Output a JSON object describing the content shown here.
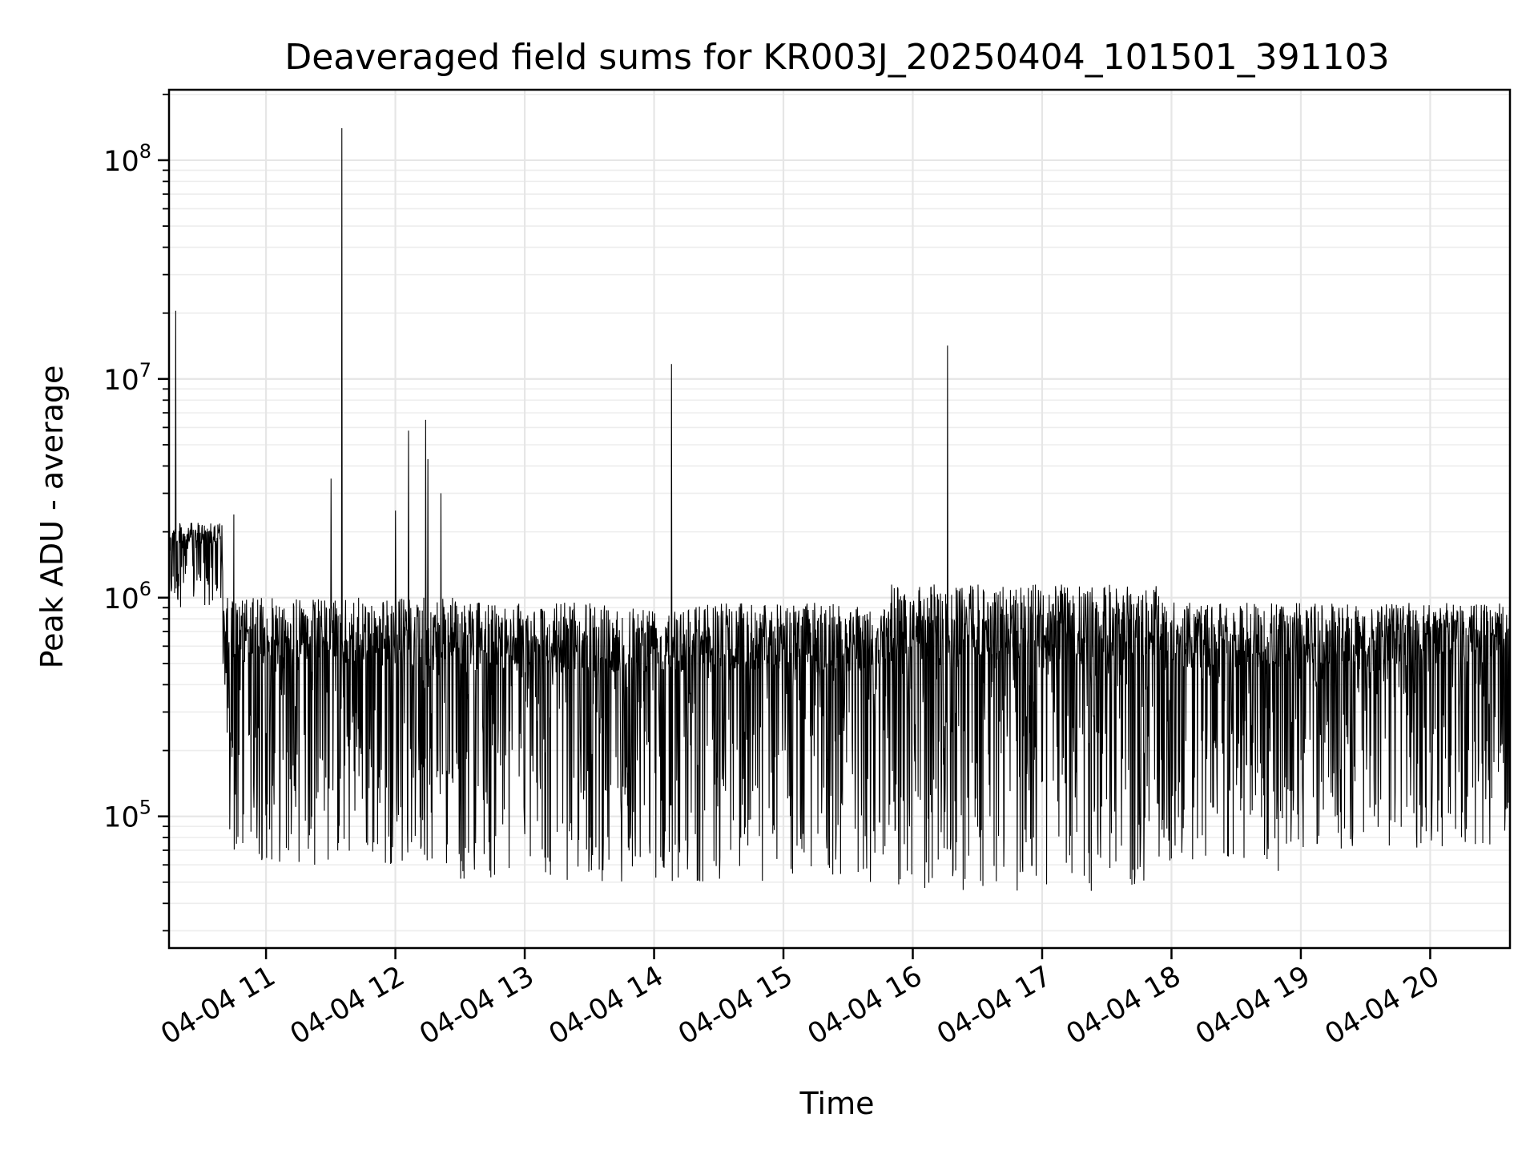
{
  "chart_data": {
    "type": "line",
    "title": "Deaveraged field sums for KR003J_20250404_101501_391103",
    "xlabel": "Time",
    "ylabel": "Peak ADU - average",
    "yscale": "log",
    "ylim": [
      25000,
      210000000
    ],
    "xlim": [
      "2025-04-04 10:15",
      "2025-04-04 20:37"
    ],
    "grid": true,
    "x_ticks": [
      "04-04 11",
      "04-04 12",
      "04-04 13",
      "04-04 14",
      "04-04 15",
      "04-04 16",
      "04-04 17",
      "04-04 18",
      "04-04 19",
      "04-04 20"
    ],
    "y_ticks": [
      {
        "base": "10",
        "exp": "5",
        "value": 100000
      },
      {
        "base": "10",
        "exp": "6",
        "value": 1000000
      },
      {
        "base": "10",
        "exp": "7",
        "value": 10000000
      },
      {
        "base": "10",
        "exp": "8",
        "value": 100000000
      }
    ],
    "series": [
      {
        "color": "#000000",
        "segments": [
          {
            "from": "2025-04-04 10:15",
            "to": "2025-04-04 10:40",
            "low": 900000,
            "high": 2200000
          },
          {
            "from": "2025-04-04 10:40",
            "to": "2025-04-04 12:30",
            "low": 60000,
            "high": 1000000
          },
          {
            "from": "2025-04-04 12:30",
            "to": "2025-04-04 15:50",
            "low": 50000,
            "high": 950000
          },
          {
            "from": "2025-04-04 15:50",
            "to": "2025-04-04 17:55",
            "low": 45000,
            "high": 1150000
          },
          {
            "from": "2025-04-04 17:55",
            "to": "2025-04-04 18:50",
            "low": 55000,
            "high": 950000
          },
          {
            "from": "2025-04-04 18:50",
            "to": "2025-04-04 20:37",
            "low": 70000,
            "high": 950000
          }
        ],
        "spikes": [
          {
            "x": "2025-04-04 10:18",
            "y": 20500000
          },
          {
            "x": "2025-04-04 10:45",
            "y": 2400000
          },
          {
            "x": "2025-04-04 11:30",
            "y": 3500000
          },
          {
            "x": "2025-04-04 11:35",
            "y": 140000000
          },
          {
            "x": "2025-04-04 12:00",
            "y": 2500000
          },
          {
            "x": "2025-04-04 12:06",
            "y": 5800000
          },
          {
            "x": "2025-04-04 12:14",
            "y": 6500000
          },
          {
            "x": "2025-04-04 12:15",
            "y": 4300000
          },
          {
            "x": "2025-04-04 12:21",
            "y": 3000000
          },
          {
            "x": "2025-04-04 14:08",
            "y": 11700000
          },
          {
            "x": "2025-04-04 16:16",
            "y": 14200000
          }
        ]
      }
    ]
  }
}
